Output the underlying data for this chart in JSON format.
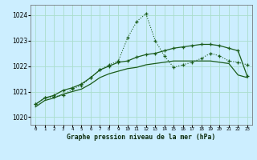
{
  "title": "Graphe pression niveau de la mer (hPa)",
  "bg_color": "#cceeff",
  "grid_color": "#aaddcc",
  "line_color": "#1a5c1a",
  "x_labels": [
    "0",
    "1",
    "2",
    "3",
    "4",
    "5",
    "6",
    "7",
    "8",
    "9",
    "10",
    "11",
    "12",
    "13",
    "14",
    "15",
    "16",
    "17",
    "18",
    "19",
    "20",
    "21",
    "22",
    "23"
  ],
  "ylim": [
    1019.7,
    1024.4
  ],
  "yticks": [
    1020,
    1021,
    1022,
    1023,
    1024
  ],
  "series1_dotted": [
    1020.5,
    1020.75,
    1020.8,
    1020.85,
    1021.1,
    1021.25,
    1021.55,
    1021.85,
    1022.05,
    1022.2,
    1023.1,
    1023.75,
    1024.05,
    1023.0,
    1022.4,
    1021.95,
    1022.05,
    1022.15,
    1022.3,
    1022.5,
    1022.4,
    1022.2,
    1022.15,
    1022.05
  ],
  "series2_solid_markers": [
    1020.5,
    1020.75,
    1020.85,
    1021.05,
    1021.15,
    1021.3,
    1021.55,
    1021.85,
    1022.0,
    1022.15,
    1022.2,
    1022.35,
    1022.45,
    1022.5,
    1022.6,
    1022.7,
    1022.75,
    1022.8,
    1022.85,
    1022.85,
    1022.8,
    1022.7,
    1022.6,
    1021.6
  ],
  "series3_solid_plain": [
    1020.4,
    1020.65,
    1020.75,
    1020.9,
    1021.0,
    1021.1,
    1021.3,
    1021.55,
    1021.7,
    1021.8,
    1021.9,
    1021.95,
    1022.05,
    1022.1,
    1022.15,
    1022.2,
    1022.2,
    1022.2,
    1022.2,
    1022.2,
    1022.15,
    1022.1,
    1021.65,
    1021.55
  ]
}
